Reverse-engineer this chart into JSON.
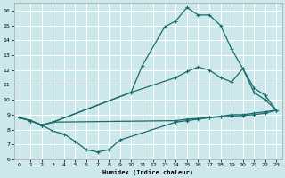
{
  "xlabel": "Humidex (Indice chaleur)",
  "bg_color": "#cce8ea",
  "grid_color": "#ffffff",
  "line_color": "#1a6b6b",
  "xlim": [
    -0.5,
    23.5
  ],
  "ylim": [
    6,
    16.5
  ],
  "xticks": [
    0,
    1,
    2,
    3,
    4,
    5,
    6,
    7,
    8,
    9,
    10,
    11,
    12,
    13,
    14,
    15,
    16,
    17,
    18,
    19,
    20,
    21,
    22,
    23
  ],
  "yticks": [
    6,
    7,
    8,
    9,
    10,
    11,
    12,
    13,
    14,
    15,
    16
  ],
  "line1_x": [
    0,
    1,
    2,
    3,
    10,
    11,
    13,
    14,
    15,
    16,
    17,
    18,
    19,
    20,
    21,
    22,
    23
  ],
  "line1_y": [
    8.8,
    8.6,
    8.3,
    8.5,
    10.5,
    12.3,
    14.9,
    15.3,
    16.2,
    15.7,
    15.7,
    15.0,
    13.4,
    12.1,
    10.5,
    10.0,
    9.3
  ],
  "line2_x": [
    0,
    1,
    2,
    3,
    10,
    14,
    15,
    16,
    17,
    18,
    19,
    20,
    21,
    22,
    23
  ],
  "line2_y": [
    8.8,
    8.6,
    8.3,
    8.5,
    10.5,
    11.5,
    11.9,
    12.2,
    12.0,
    11.5,
    11.2,
    12.1,
    10.8,
    10.3,
    9.3
  ],
  "line3_x": [
    0,
    1,
    2,
    3,
    4,
    5,
    6,
    7,
    8,
    9,
    14,
    15,
    16,
    17,
    18,
    19,
    20,
    21,
    22,
    23
  ],
  "line3_y": [
    8.8,
    8.6,
    8.3,
    7.9,
    7.7,
    7.2,
    6.65,
    6.5,
    6.65,
    7.3,
    8.5,
    8.6,
    8.7,
    8.8,
    8.9,
    9.0,
    9.0,
    9.1,
    9.2,
    9.3
  ],
  "line4_x": [
    0,
    1,
    2,
    3,
    14,
    15,
    16,
    17,
    18,
    19,
    20,
    21,
    22,
    23
  ],
  "line4_y": [
    8.8,
    8.6,
    8.3,
    8.5,
    8.6,
    8.7,
    8.75,
    8.8,
    8.85,
    8.9,
    8.95,
    9.0,
    9.1,
    9.3
  ]
}
